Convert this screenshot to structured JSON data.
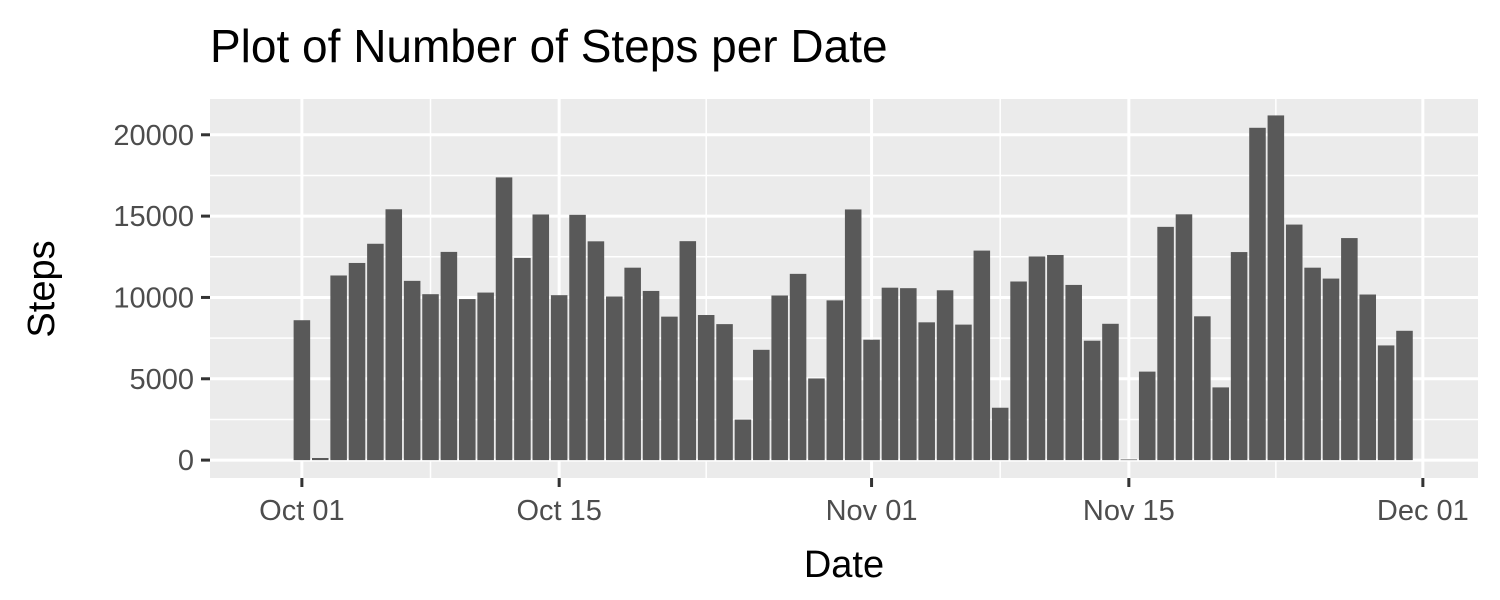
{
  "chart_data": {
    "type": "bar",
    "title": "Plot of Number of Steps per Date",
    "xlabel": "Date",
    "ylabel": "Steps",
    "x_axis": {
      "type": "date",
      "range": [
        "2012-09-26",
        "2012-12-04"
      ],
      "ticks": [
        {
          "date": "2012-10-01",
          "label": "Oct 01"
        },
        {
          "date": "2012-10-15",
          "label": "Oct 15"
        },
        {
          "date": "2012-11-01",
          "label": "Nov 01"
        },
        {
          "date": "2012-11-15",
          "label": "Nov 15"
        },
        {
          "date": "2012-12-01",
          "label": "Dec 01"
        }
      ],
      "minor_ticks": [
        "2012-10-08",
        "2012-10-23",
        "2012-11-08",
        "2012-11-23"
      ]
    },
    "ylim": [
      -1100,
      22200
    ],
    "y_ticks": [
      0,
      5000,
      10000,
      15000,
      20000
    ],
    "y_minor_ticks": [
      2500,
      7500,
      12500,
      17500
    ],
    "grid": true,
    "bar_color": "#595959",
    "panel_color": "#ebebeb",
    "dates": [
      "2012-10-01",
      "2012-10-02",
      "2012-10-03",
      "2012-10-04",
      "2012-10-05",
      "2012-10-06",
      "2012-10-07",
      "2012-10-08",
      "2012-10-09",
      "2012-10-10",
      "2012-10-11",
      "2012-10-12",
      "2012-10-13",
      "2012-10-14",
      "2012-10-15",
      "2012-10-16",
      "2012-10-17",
      "2012-10-18",
      "2012-10-19",
      "2012-10-20",
      "2012-10-21",
      "2012-10-22",
      "2012-10-23",
      "2012-10-24",
      "2012-10-25",
      "2012-10-26",
      "2012-10-27",
      "2012-10-28",
      "2012-10-29",
      "2012-10-30",
      "2012-10-31",
      "2012-11-01",
      "2012-11-02",
      "2012-11-03",
      "2012-11-04",
      "2012-11-05",
      "2012-11-06",
      "2012-11-07",
      "2012-11-08",
      "2012-11-09",
      "2012-11-10",
      "2012-11-11",
      "2012-11-12",
      "2012-11-13",
      "2012-11-14",
      "2012-11-15",
      "2012-11-16",
      "2012-11-17",
      "2012-11-18",
      "2012-11-19",
      "2012-11-20",
      "2012-11-21",
      "2012-11-22",
      "2012-11-23",
      "2012-11-24",
      "2012-11-25",
      "2012-11-26",
      "2012-11-27",
      "2012-11-28",
      "2012-11-29",
      "2012-11-30"
    ],
    "values": [
      8600,
      130,
      11350,
      12120,
      13300,
      15420,
      11020,
      10200,
      12800,
      9900,
      10300,
      17380,
      12430,
      15100,
      10140,
      15080,
      13450,
      10060,
      11830,
      10400,
      8820,
      13460,
      8920,
      8360,
      2490,
      6780,
      10120,
      11450,
      5020,
      9820,
      15410,
      7400,
      10600,
      10570,
      8470,
      10440,
      8330,
      12880,
      3220,
      10980,
      12520,
      12610,
      10770,
      7340,
      8380,
      40,
      5440,
      14340,
      15110,
      8840,
      4470,
      12790,
      20430,
      21190,
      14480,
      11830,
      11160,
      13650,
      10180,
      7050,
      7950
    ]
  }
}
